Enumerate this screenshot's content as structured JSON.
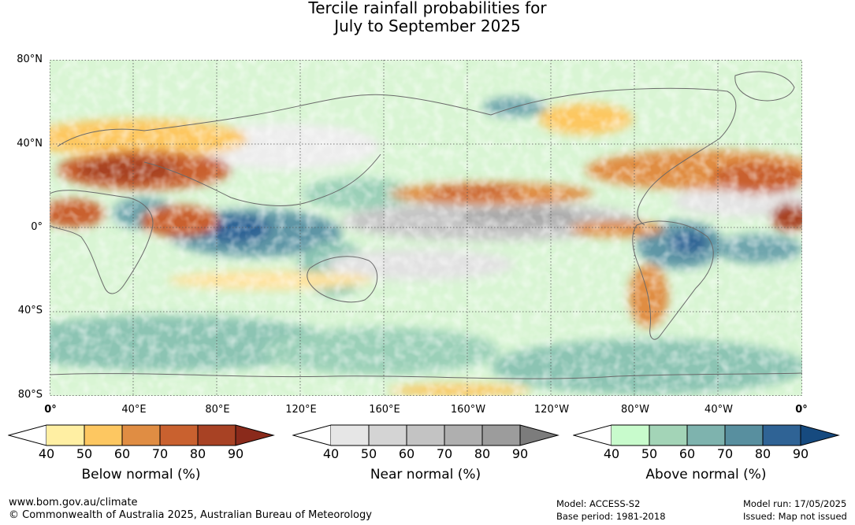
{
  "title": {
    "line1": "Tercile rainfall probabilities for",
    "line2": "July to September 2025"
  },
  "map": {
    "lat_labels": [
      "80°N",
      "40°N",
      "0°",
      "40°S",
      "80°S"
    ],
    "lon_labels": [
      "0°",
      "40°E",
      "80°E",
      "120°E",
      "160°E",
      "160°W",
      "120°W",
      "80°W",
      "40°W",
      "0°"
    ],
    "background_color": "#ffffff",
    "gridline_style": "dotted"
  },
  "colorbars": [
    {
      "title": "Below normal (%)",
      "ticks": [
        "40",
        "50",
        "60",
        "70",
        "80",
        "90"
      ],
      "colors": [
        "#ffefa3",
        "#fdc761",
        "#e08d43",
        "#c9612f",
        "#a84224",
        "#8a2a1b"
      ]
    },
    {
      "title": "Near normal (%)",
      "ticks": [
        "40",
        "50",
        "60",
        "70",
        "80",
        "90"
      ],
      "colors": [
        "#e6e6e6",
        "#d4d4d4",
        "#c3c3c3",
        "#afafaf",
        "#9c9c9c",
        "#7c7c7c"
      ]
    },
    {
      "title": "Above normal (%)",
      "ticks": [
        "40",
        "50",
        "60",
        "70",
        "80",
        "90"
      ],
      "colors": [
        "#c8fbcc",
        "#a3d4b7",
        "#7eb3ae",
        "#588f9f",
        "#2f6395",
        "#164a7f"
      ]
    }
  ],
  "footer": {
    "website": "www.bom.gov.au/climate",
    "copyright": "© Commonwealth of Australia 2025, Australian Bureau of Meteorology",
    "model": "Model: ACCESS-S2",
    "base_period": "Base period: 1981-2018",
    "model_run": "Model run: 17/05/2025",
    "issued": "Issued: Map not issued"
  }
}
